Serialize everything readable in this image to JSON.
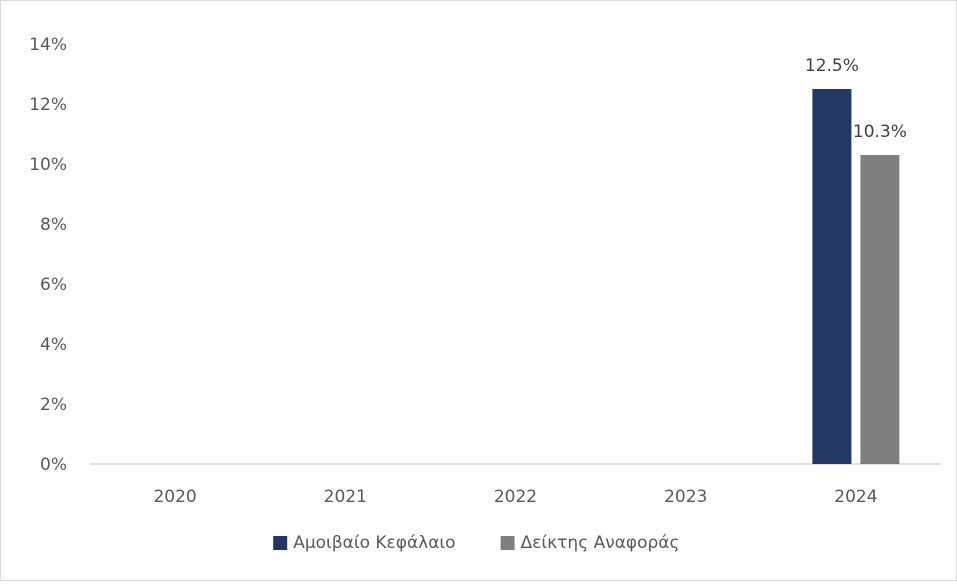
{
  "chart_data": {
    "type": "bar",
    "categories": [
      "2020",
      "2021",
      "2022",
      "2023",
      "2024"
    ],
    "series": [
      {
        "name": "Αμοιβαίο Κεφάλαιο",
        "values": [
          null,
          null,
          null,
          null,
          12.5
        ],
        "labels": [
          null,
          null,
          null,
          null,
          "12.5%"
        ],
        "color": "#223763"
      },
      {
        "name": "Δείκτης Αναφοράς",
        "values": [
          null,
          null,
          null,
          null,
          10.3
        ],
        "labels": [
          null,
          null,
          null,
          null,
          "10.3%"
        ],
        "color": "#7f7f7f"
      }
    ],
    "y_ticks": [
      "0%",
      "2%",
      "4%",
      "6%",
      "8%",
      "10%",
      "12%",
      "14%"
    ],
    "ylim": [
      0,
      14
    ],
    "title": "",
    "xlabel": "",
    "ylabel": "",
    "grid": false,
    "legend_position": "bottom"
  }
}
